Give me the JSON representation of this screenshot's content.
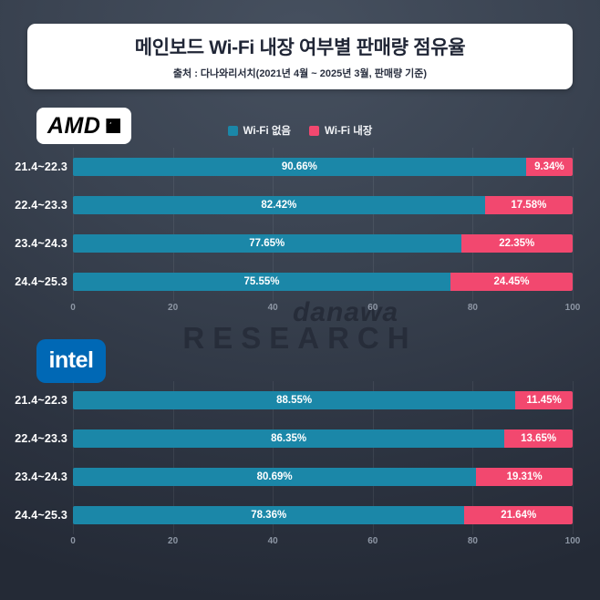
{
  "header": {
    "title": "메인보드 Wi-Fi 내장 여부별 판매량 점유율",
    "subtitle": "출처 : 다나와리서치(2021년 4월 ~ 2025년 3월, 판매량 기준)"
  },
  "logos": {
    "amd": "AMD",
    "intel": "intel"
  },
  "legend": {
    "items": [
      {
        "label": "Wi-Fi 없음",
        "color": "#1b87a8"
      },
      {
        "label": "Wi-Fi 내장",
        "color": "#f2486f"
      }
    ]
  },
  "colors": {
    "no_wifi": "#1b87a8",
    "wifi": "#f2486f",
    "background_top": "#46505f",
    "background_bottom": "#242a36",
    "axis_text": "#8d96a4"
  },
  "watermark": {
    "line1": "danawa",
    "line2": "RESEARCH"
  },
  "chart_data": [
    {
      "type": "bar",
      "group": "AMD",
      "orientation": "horizontal",
      "stacked": true,
      "categories": [
        "21.4~22.3",
        "22.4~23.3",
        "23.4~24.3",
        "24.4~25.3"
      ],
      "series": [
        {
          "name": "Wi-Fi 없음",
          "values": [
            90.66,
            82.42,
            77.65,
            75.55
          ]
        },
        {
          "name": "Wi-Fi 내장",
          "values": [
            9.34,
            17.58,
            22.35,
            24.45
          ]
        }
      ],
      "xlim": [
        0,
        100
      ],
      "x_ticks": [
        0,
        20,
        40,
        60,
        80,
        100
      ],
      "grid": true,
      "legend_position": "top-center"
    },
    {
      "type": "bar",
      "group": "intel",
      "orientation": "horizontal",
      "stacked": true,
      "categories": [
        "21.4~22.3",
        "22.4~23.3",
        "23.4~24.3",
        "24.4~25.3"
      ],
      "series": [
        {
          "name": "Wi-Fi 없음",
          "values": [
            88.55,
            86.35,
            80.69,
            78.36
          ]
        },
        {
          "name": "Wi-Fi 내장",
          "values": [
            11.45,
            13.65,
            19.31,
            21.64
          ]
        }
      ],
      "xlim": [
        0,
        100
      ],
      "x_ticks": [
        0,
        20,
        40,
        60,
        80,
        100
      ],
      "grid": true,
      "legend_position": "top-center"
    }
  ]
}
